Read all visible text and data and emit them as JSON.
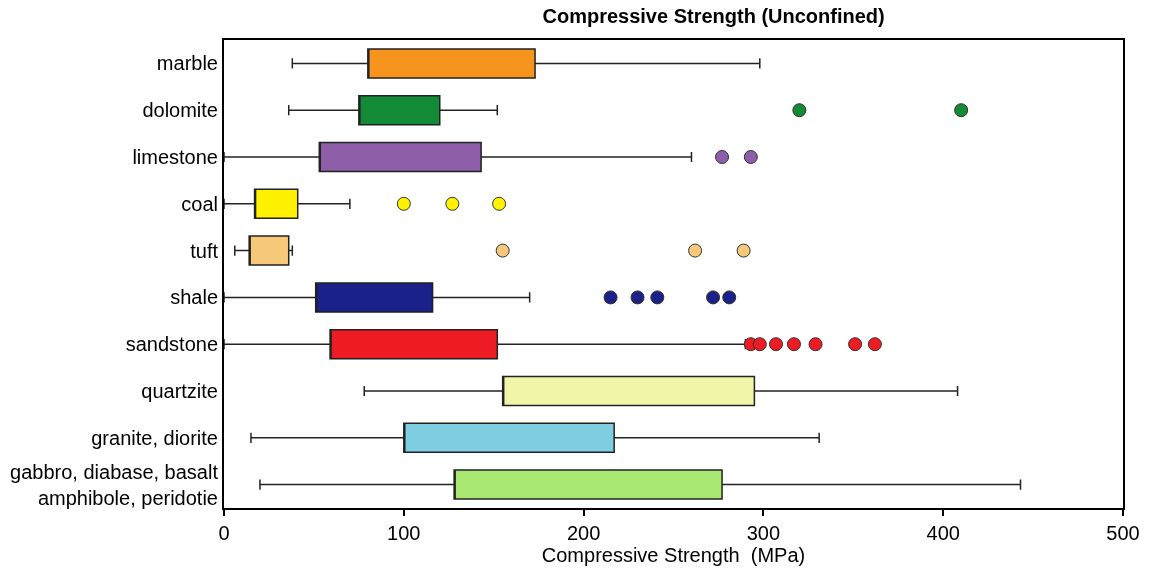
{
  "chart_data": {
    "type": "box",
    "title": "Compressive Strength (Unconfined)",
    "xlabel": "Compressive Strength  (MPa)",
    "orientation": "horizontal",
    "categories": [
      "marble",
      "dolomite",
      "limestone",
      "coal",
      "tuft",
      "shale",
      "sandstone",
      "quartzite",
      "granite, diorite",
      "gabbro, diabase, basalt\namphibole, peridotie"
    ],
    "colors": [
      "#f7941d",
      "#138a36",
      "#8e5ea8",
      "#fff200",
      "#f6c97a",
      "#1a2188",
      "#ed1c24",
      "#f0f5a8",
      "#7ecde0",
      "#a8e872"
    ],
    "boxes": [
      {
        "low": 38,
        "q1": 80,
        "q3": 173,
        "high": 298
      },
      {
        "low": 36,
        "q1": 75,
        "q3": 120,
        "high": 152,
        "outliers": [
          320,
          410
        ]
      },
      {
        "low": 0,
        "q1": 53,
        "q3": 143,
        "high": 260,
        "outliers": [
          277,
          293
        ]
      },
      {
        "low": 0,
        "q1": 17,
        "q3": 41,
        "high": 70,
        "outliers": [
          100,
          127,
          153
        ]
      },
      {
        "low": 6,
        "q1": 14,
        "q3": 36,
        "high": 38,
        "outliers": [
          155,
          262,
          289
        ]
      },
      {
        "low": 0,
        "q1": 51,
        "q3": 116,
        "high": 170,
        "outliers": [
          215,
          230,
          241,
          272,
          281
        ]
      },
      {
        "low": 0,
        "q1": 59,
        "q3": 152,
        "high": 290,
        "outliers": [
          293,
          298,
          307,
          317,
          329,
          351,
          362
        ]
      },
      {
        "low": 78,
        "q1": 155,
        "q3": 295,
        "high": 408
      },
      {
        "low": 15,
        "q1": 100,
        "q3": 217,
        "high": 331
      },
      {
        "low": 20,
        "q1": 128,
        "q3": 277,
        "high": 443
      }
    ],
    "xlim": [
      0,
      500
    ],
    "xticks": [
      0,
      100,
      200,
      300,
      400,
      500
    ]
  }
}
